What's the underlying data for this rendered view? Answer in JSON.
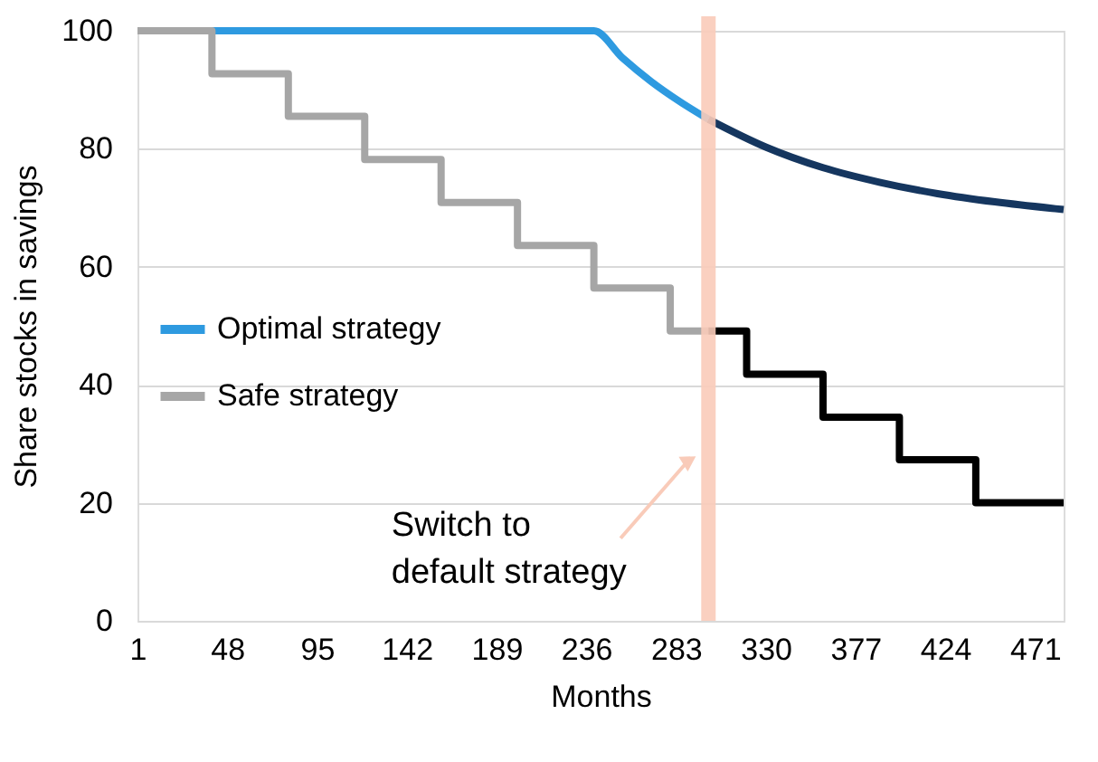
{
  "chart_data": {
    "type": "line",
    "xlabel": "Months",
    "ylabel": "Share stocks in savings",
    "xlim": [
      1,
      486
    ],
    "xticks": [
      1,
      48,
      95,
      142,
      189,
      236,
      283,
      330,
      377,
      424,
      471
    ],
    "ylim": [
      0,
      100
    ],
    "yticks": [
      0,
      20,
      40,
      60,
      80,
      100
    ],
    "grid": "y",
    "legend": "left",
    "series": [
      {
        "name": "Optimal strategy",
        "color": "#2e9ae0",
        "x": [
          1,
          240,
          255,
          270,
          285,
          300
        ],
        "values": [
          100,
          100,
          95.4,
          91.4,
          88.0,
          85.0
        ]
      },
      {
        "color": "#15365f",
        "x": [
          300,
          330,
          360,
          390,
          420,
          450,
          480,
          486
        ],
        "values": [
          85.0,
          80.3,
          76.8,
          74.3,
          72.4,
          71.0,
          69.9,
          69.7
        ]
      },
      {
        "name": "Safe strategy",
        "type": "step",
        "color": "#a6a6a6",
        "x": [
          1,
          40,
          80,
          120,
          160,
          200,
          240,
          280,
          300
        ],
        "values": [
          100,
          92.7,
          85.5,
          78.2,
          70.9,
          63.6,
          56.4,
          49.1,
          49.1
        ]
      },
      {
        "type": "step",
        "color": "#000000",
        "x": [
          300,
          320,
          360,
          400,
          440,
          486
        ],
        "values": [
          49.1,
          41.8,
          34.5,
          27.3,
          20.0,
          20.0
        ]
      }
    ],
    "ref_lines": [
      {
        "axis": "x",
        "value": 300,
        "color": "#f9cbb9"
      }
    ],
    "annotations": [
      {
        "text": "Switch to\ndefault strategy",
        "x": 300,
        "y": 27
      }
    ]
  }
}
